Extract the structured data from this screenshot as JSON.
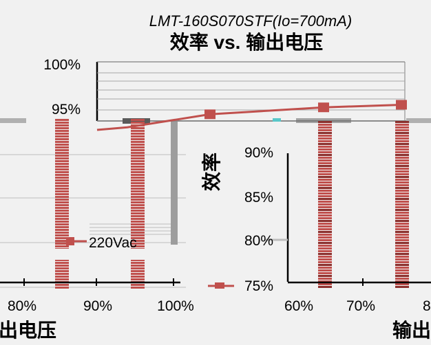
{
  "chart_data": {
    "type": "line",
    "subtitle": "LMT-160S070STF(Io=700mA)",
    "title": "效率 vs. 输出电压",
    "ylabel": "效率",
    "xlabel": "输出电压",
    "xlabel_clipped_left": "出电压",
    "xlabel_clipped_right": "输出",
    "ylim": [
      75,
      100
    ],
    "y_ticks": [
      "100%",
      "95%",
      "90%",
      "85%",
      "80%",
      "75%"
    ],
    "x_ticks": [
      "80%",
      "90%",
      "100%",
      "60%",
      "70%",
      "8"
    ],
    "series": [
      {
        "name": "220Vac",
        "x": [
          90,
          100,
          60,
          70
        ],
        "values": [
          93.0,
          94.5,
          95.3,
          95.6
        ],
        "color": "#c0504d"
      }
    ],
    "grid": true,
    "legend": "left"
  }
}
